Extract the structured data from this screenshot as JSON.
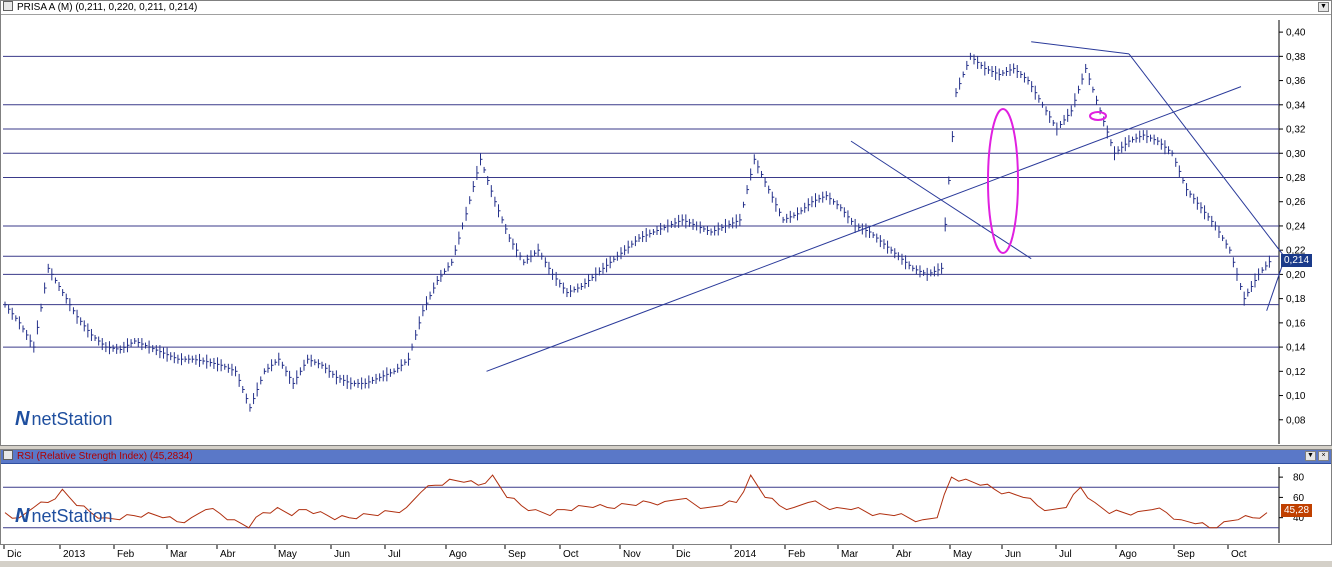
{
  "price_pane": {
    "title": "PRISA A (M) (0,211, 0,220, 0,211, 0,214)",
    "last_price_label": "0,214",
    "logo_text": "netStation"
  },
  "rsi_pane": {
    "title": "RSI (Relative Strength Index) (45,2834)",
    "last_value_label": "45,28",
    "logo_text": "netStation"
  },
  "window_buttons": {
    "minimize": "▼",
    "maximize": "▫",
    "close": "×"
  },
  "chart_data": [
    {
      "type": "line",
      "chart": "price",
      "ylim": [
        0.06,
        0.41
      ],
      "y_ticks": [
        "0,08",
        "0,10",
        "0,12",
        "0,14",
        "0,16",
        "0,18",
        "0,20",
        "0,22",
        "0,24",
        "0,26",
        "0,28",
        "0,30",
        "0,32",
        "0,34",
        "0,36",
        "0,38",
        "0,40"
      ],
      "horizontal_levels": [
        0.14,
        0.175,
        0.2,
        0.215,
        0.24,
        0.28,
        0.3,
        0.32,
        0.34,
        0.38
      ],
      "x_labels": [
        "Dic",
        "2013",
        "Feb",
        "Mar",
        "Abr",
        "May",
        "Jun",
        "Jul",
        "Ago",
        "Sep",
        "Oct",
        "Nov",
        "Dic",
        "2014",
        "Feb",
        "Mar",
        "Abr",
        "May",
        "Jun",
        "Jul",
        "Ago",
        "Sep",
        "Oct"
      ],
      "series": [
        {
          "values": [
            0.175,
            0.16,
            0.14,
            0.205,
            0.185,
            0.165,
            0.15,
            0.14,
            0.138,
            0.145,
            0.14,
            0.135,
            0.13,
            0.13,
            0.128,
            0.125,
            0.12,
            0.09,
            0.12,
            0.13,
            0.11,
            0.13,
            0.125,
            0.115,
            0.11,
            0.11,
            0.115,
            0.12,
            0.13,
            0.17,
            0.195,
            0.21,
            0.25,
            0.295,
            0.26,
            0.23,
            0.21,
            0.22,
            0.2,
            0.185,
            0.19,
            0.2,
            0.21,
            0.22,
            0.23,
            0.235,
            0.24,
            0.245,
            0.24,
            0.235,
            0.24,
            0.245,
            0.295,
            0.27,
            0.245,
            0.25,
            0.26,
            0.265,
            0.255,
            0.24,
            0.235,
            0.225,
            0.215,
            0.205,
            0.2,
            0.205,
            0.35,
            0.38,
            0.37,
            0.365,
            0.37,
            0.36,
            0.34,
            0.32,
            0.335,
            0.37,
            0.335,
            0.3,
            0.31,
            0.315,
            0.31,
            0.3,
            0.27,
            0.255,
            0.24,
            0.22,
            0.18,
            0.2,
            0.214
          ]
        }
      ],
      "trendlines": [
        {
          "from": [
            "2013-08-15",
            0.12
          ],
          "to": [
            "2014-10-01",
            0.355
          ]
        },
        {
          "from": [
            "2014-03-01",
            0.31
          ],
          "to": [
            "2014-06-10",
            0.213
          ]
        },
        {
          "from": [
            "2014-06-10",
            0.392
          ],
          "to": [
            "2014-08-01",
            0.382
          ]
        },
        {
          "from": [
            "2014-08-01",
            0.382
          ],
          "to": [
            "2014-10-25",
            0.214
          ]
        },
        {
          "from": [
            "2014-10-15",
            0.17
          ],
          "to": [
            "2014-10-25",
            0.214
          ]
        }
      ]
    },
    {
      "type": "line",
      "chart": "rsi",
      "ylim": [
        15,
        90
      ],
      "y_ticks": [
        "40",
        "60",
        "80"
      ],
      "horizontal_levels": [
        30,
        70
      ],
      "series": [
        {
          "values": [
            45,
            40,
            50,
            55,
            68,
            52,
            45,
            40,
            38,
            42,
            45,
            40,
            36,
            40,
            48,
            44,
            38,
            30,
            45,
            50,
            42,
            48,
            46,
            38,
            40,
            44,
            42,
            46,
            50,
            65,
            72,
            78,
            75,
            72,
            82,
            60,
            52,
            48,
            42,
            48,
            52,
            50,
            50,
            54,
            52,
            55,
            56,
            58,
            54,
            50,
            52,
            55,
            82,
            60,
            52,
            50,
            55,
            52,
            50,
            48,
            46,
            44,
            42,
            40,
            38,
            40,
            80,
            78,
            72,
            68,
            65,
            60,
            52,
            48,
            50,
            70,
            55,
            44,
            45,
            46,
            48,
            45,
            38,
            34,
            30,
            36,
            38,
            40,
            45
          ]
        }
      ]
    }
  ]
}
